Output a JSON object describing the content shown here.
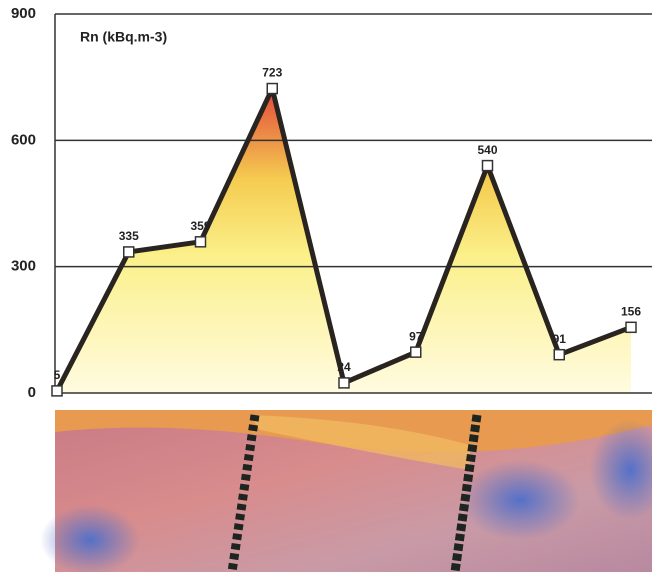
{
  "chart_data": {
    "type": "area",
    "label": "Rn (kBq.m-3)",
    "categories": [
      null,
      null,
      null,
      null,
      null,
      null,
      null,
      null,
      null
    ],
    "values": [
      5,
      335,
      359,
      723,
      24,
      97,
      540,
      91,
      156
    ],
    "ylim": [
      0,
      900
    ],
    "yticks": [
      0,
      300,
      600,
      900
    ],
    "grid": true,
    "color": "#2a2420"
  }
}
